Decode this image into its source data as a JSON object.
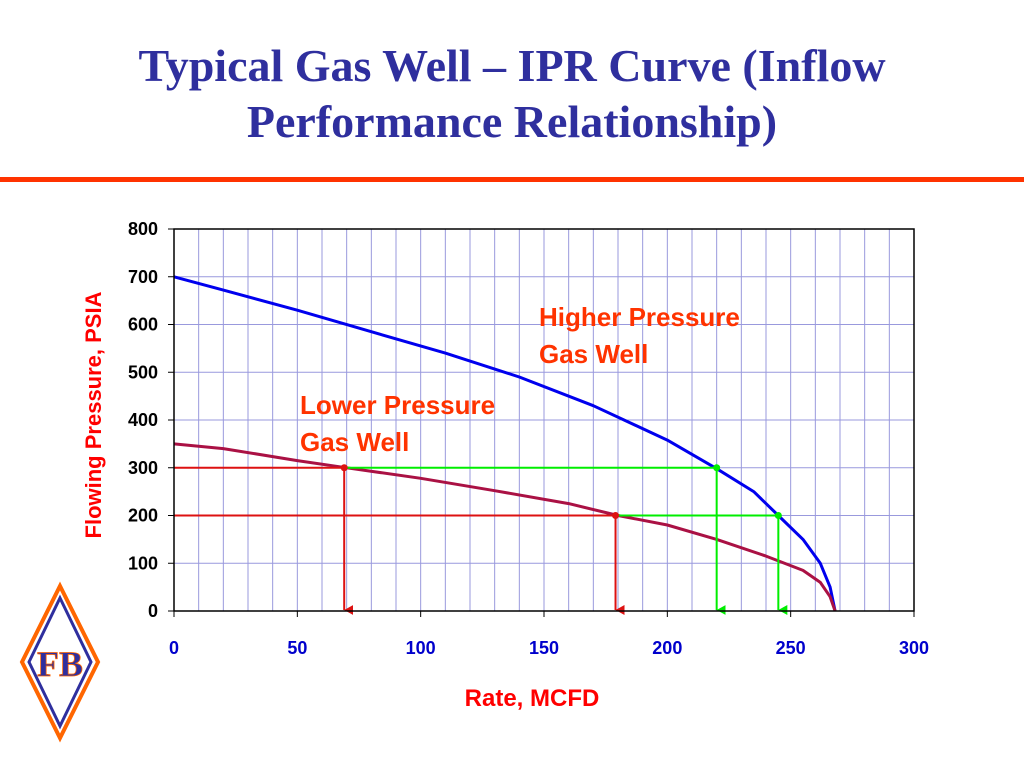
{
  "slide": {
    "title_line1": "Typical Gas Well – IPR Curve (Inflow",
    "title_line2": "Performance Relationship)"
  },
  "logo": {
    "text": "FB"
  },
  "colors": {
    "title": "#2f2f9e",
    "rule": "#ff3300",
    "axis_labels": "#ff0000",
    "tick_labels": "#0000cc",
    "high_curve": "#0000ee",
    "low_curve": "#aa1144",
    "guide_green": "#00ee00",
    "guide_red": "#dd1111",
    "annotation": "#ff3300"
  },
  "chart_data": {
    "type": "line",
    "xlabel": "Rate, MCFD",
    "ylabel": "Flowing Pressure, PSIA",
    "xlim": [
      0,
      300
    ],
    "ylim": [
      0,
      800
    ],
    "xticks": [
      "0",
      "50",
      "100",
      "150",
      "200",
      "250",
      "300"
    ],
    "yticks": [
      "0",
      "100",
      "200",
      "300",
      "400",
      "500",
      "600",
      "700",
      "800"
    ],
    "grid": true,
    "series": [
      {
        "name": "Higher Pressure Gas Well",
        "x": [
          0,
          20,
          50,
          80,
          110,
          140,
          170,
          200,
          220,
          235,
          245,
          255,
          262,
          266,
          268
        ],
        "y": [
          700,
          672,
          630,
          585,
          540,
          490,
          430,
          358,
          298,
          250,
          200,
          150,
          100,
          50,
          0
        ]
      },
      {
        "name": "Lower Pressure Gas Well",
        "x": [
          0,
          20,
          50,
          70,
          100,
          130,
          160,
          180,
          200,
          220,
          240,
          255,
          262,
          266,
          268
        ],
        "y": [
          350,
          340,
          315,
          300,
          278,
          252,
          225,
          200,
          180,
          150,
          115,
          85,
          60,
          30,
          0
        ]
      }
    ],
    "guides": {
      "horizontal": [
        {
          "y": 300,
          "x_start": 0,
          "x_split": 69,
          "x_end": 220
        },
        {
          "y": 200,
          "x_start": 0,
          "x_split": 179,
          "x_end": 245
        }
      ],
      "arrows": [
        {
          "x": 69,
          "y_from": 300,
          "type": "red"
        },
        {
          "x": 179,
          "y_from": 200,
          "type": "red"
        },
        {
          "x": 220,
          "y_from": 300,
          "type": "green"
        },
        {
          "x": 245,
          "y_from": 200,
          "type": "green"
        }
      ]
    },
    "annotations": [
      {
        "text": [
          "Higher Pressure",
          "Gas Well"
        ]
      },
      {
        "text": [
          "Lower Pressure",
          "Gas Well"
        ]
      }
    ]
  }
}
